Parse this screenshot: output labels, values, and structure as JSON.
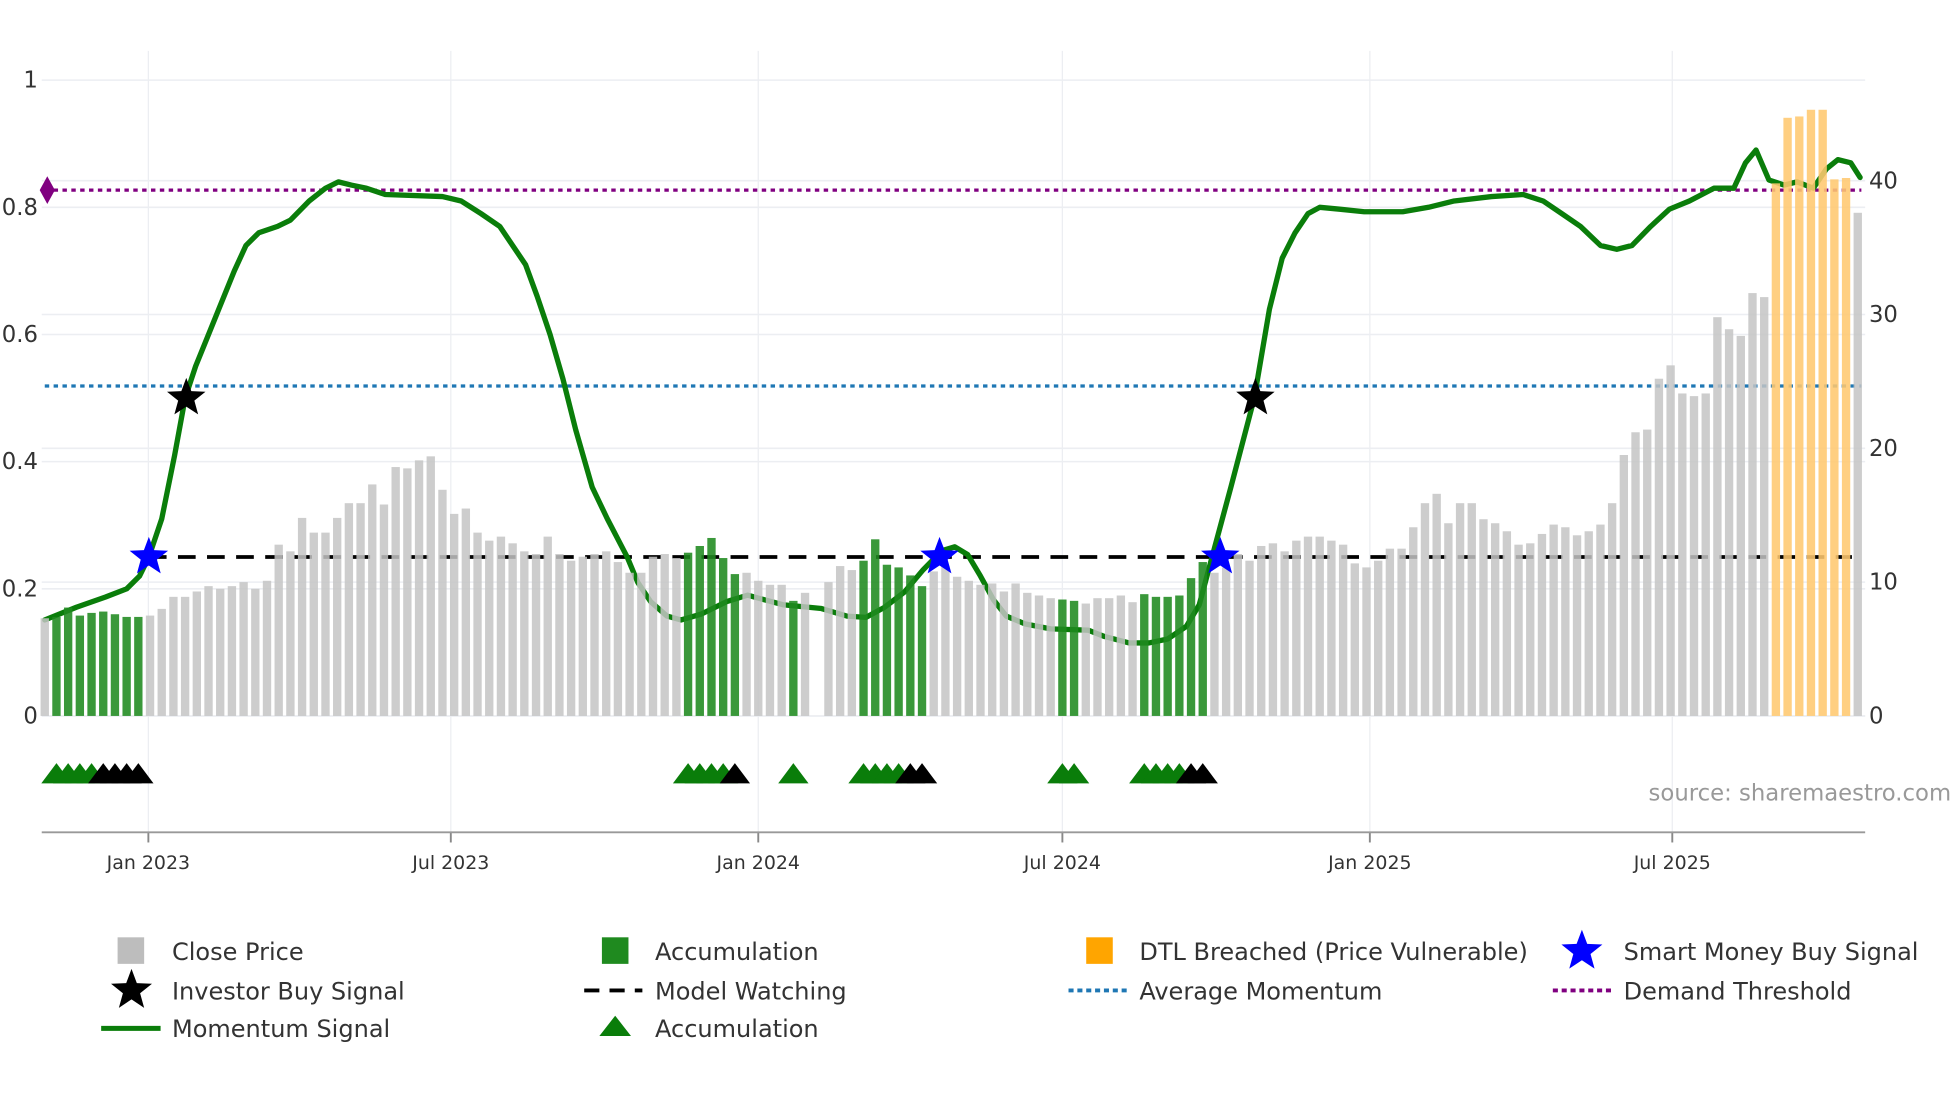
{
  "chart_data": {
    "type": "bar+line",
    "start_week": "2022-10-31",
    "frequency": "weekly",
    "price": {
      "name": "Close Price",
      "axis": "right",
      "values": [
        7.3,
        7.4,
        8.1,
        7.5,
        7.7,
        7.8,
        7.6,
        7.4,
        7.4,
        7.5,
        8.0,
        8.9,
        8.9,
        9.3,
        9.7,
        9.5,
        9.7,
        10.0,
        9.5,
        10.1,
        12.8,
        12.3,
        14.8,
        13.7,
        13.7,
        14.8,
        15.9,
        15.9,
        17.3,
        15.8,
        18.6,
        18.5,
        19.1,
        19.4,
        16.9,
        15.1,
        15.5,
        13.7,
        13.1,
        13.4,
        12.9,
        12.3,
        12.1,
        13.4,
        12.1,
        11.6,
        11.9,
        12.1,
        12.3,
        11.5,
        10.7,
        10.7,
        11.9,
        12.1,
        11.8,
        12.2,
        12.7,
        13.3,
        11.8,
        10.6,
        10.7,
        10.1,
        9.8,
        9.8,
        8.6,
        9.2,
        null,
        10.0,
        11.2,
        10.9,
        11.6,
        13.2,
        11.3,
        11.1,
        10.5,
        9.7,
        10.8,
        11.2,
        10.4,
        10.1,
        9.8,
        9.9,
        9.3,
        9.9,
        9.2,
        9.0,
        8.8,
        8.7,
        8.6,
        8.4,
        8.8,
        8.8,
        9.0,
        8.5,
        9.1,
        8.9,
        8.9,
        9.0,
        10.3,
        11.5,
        10.7,
        11.1,
        12.1,
        11.6,
        12.7,
        12.9,
        12.3,
        13.1,
        13.4,
        13.4,
        13.1,
        12.8,
        11.4,
        11.1,
        11.6,
        12.5,
        12.5,
        14.1,
        15.9,
        16.6,
        14.4,
        15.9,
        15.9,
        14.7,
        14.4,
        13.8,
        12.8,
        12.9,
        13.6,
        14.3,
        14.1,
        13.5,
        13.8,
        14.3,
        15.9,
        19.5,
        21.2,
        21.4,
        25.2,
        26.2,
        24.1,
        23.9,
        24.1,
        29.8,
        28.9,
        28.4,
        31.6,
        31.3,
        39.8,
        44.7,
        44.8,
        45.3,
        45.3,
        40.1,
        40.2,
        37.6
      ],
      "state": "ccccccccc"
    },
    "bar_state_runs": [
      [
        "close",
        1
      ],
      [
        "accumulation",
        8
      ],
      [
        "close",
        46
      ],
      [
        "accumulation",
        5
      ],
      [
        "close",
        4
      ],
      [
        "accumulation",
        1
      ],
      [
        "close",
        1
      ],
      [
        "none",
        1
      ],
      [
        "close",
        3
      ],
      [
        "accumulation",
        6
      ],
      [
        "close",
        11
      ],
      [
        "accumulation",
        2
      ],
      [
        "close",
        5
      ],
      [
        "accumulation",
        6
      ],
      [
        "close",
        48
      ],
      [
        "dtl_breached",
        7
      ],
      [
        "close",
        1
      ]
    ],
    "momentum": {
      "name": "Momentum Signal",
      "axis": "left",
      "points": [
        [
          0,
          0.151
        ],
        [
          2.7,
          0.171
        ],
        [
          5.2,
          0.187
        ],
        [
          7.0,
          0.2
        ],
        [
          8.1,
          0.22
        ],
        [
          8.9,
          0.25
        ],
        [
          10.0,
          0.31
        ],
        [
          11.1,
          0.41
        ],
        [
          12.0,
          0.5
        ],
        [
          12.9,
          0.55
        ],
        [
          14.0,
          0.6
        ],
        [
          15.1,
          0.65
        ],
        [
          16.2,
          0.7
        ],
        [
          17.2,
          0.74
        ],
        [
          18.3,
          0.76
        ],
        [
          19.9,
          0.77
        ],
        [
          21.0,
          0.78
        ],
        [
          22.6,
          0.81
        ],
        [
          24.0,
          0.83
        ],
        [
          25.1,
          0.84
        ],
        [
          26.2,
          0.835
        ],
        [
          27.5,
          0.83
        ],
        [
          29.1,
          0.82
        ],
        [
          34.0,
          0.817
        ],
        [
          35.6,
          0.81
        ],
        [
          37.3,
          0.79
        ],
        [
          38.9,
          0.77
        ],
        [
          40.0,
          0.74
        ],
        [
          41.1,
          0.71
        ],
        [
          42.1,
          0.66
        ],
        [
          43.2,
          0.6
        ],
        [
          44.3,
          0.53
        ],
        [
          45.4,
          0.45
        ],
        [
          46.8,
          0.36
        ],
        [
          48.1,
          0.31
        ],
        [
          49.8,
          0.25
        ],
        [
          50.7,
          0.21
        ],
        [
          51.8,
          0.18
        ],
        [
          53.2,
          0.157
        ],
        [
          54.4,
          0.151
        ],
        [
          56.1,
          0.16
        ],
        [
          58.3,
          0.18
        ],
        [
          60.1,
          0.19
        ],
        [
          61.5,
          0.183
        ],
        [
          63.1,
          0.175
        ],
        [
          66.4,
          0.169
        ],
        [
          68.6,
          0.157
        ],
        [
          70.2,
          0.155
        ],
        [
          71.8,
          0.171
        ],
        [
          73.5,
          0.195
        ],
        [
          75.1,
          0.23
        ],
        [
          76.7,
          0.26
        ],
        [
          77.8,
          0.266
        ],
        [
          78.9,
          0.254
        ],
        [
          80.0,
          0.22
        ],
        [
          81.1,
          0.183
        ],
        [
          82.2,
          0.157
        ],
        [
          83.8,
          0.145
        ],
        [
          86.0,
          0.137
        ],
        [
          89.2,
          0.135
        ],
        [
          90.6,
          0.125
        ],
        [
          92.7,
          0.115
        ],
        [
          94.4,
          0.115
        ],
        [
          96.0,
          0.121
        ],
        [
          97.6,
          0.141
        ],
        [
          98.7,
          0.175
        ],
        [
          99.8,
          0.25
        ],
        [
          101.4,
          0.36
        ],
        [
          103.4,
          0.5
        ],
        [
          104.7,
          0.64
        ],
        [
          105.8,
          0.72
        ],
        [
          106.9,
          0.76
        ],
        [
          108.0,
          0.79
        ],
        [
          109.0,
          0.8
        ],
        [
          110.7,
          0.797
        ],
        [
          112.8,
          0.793
        ],
        [
          116.1,
          0.793
        ],
        [
          118.3,
          0.8
        ],
        [
          120.5,
          0.81
        ],
        [
          123.7,
          0.817
        ],
        [
          126.4,
          0.82
        ],
        [
          128.1,
          0.81
        ],
        [
          129.7,
          0.79
        ],
        [
          131.3,
          0.77
        ],
        [
          133.0,
          0.74
        ],
        [
          134.4,
          0.734
        ],
        [
          135.7,
          0.74
        ],
        [
          137.3,
          0.77
        ],
        [
          138.9,
          0.797
        ],
        [
          140.6,
          0.81
        ],
        [
          142.7,
          0.83
        ],
        [
          144.4,
          0.83
        ],
        [
          145.4,
          0.87
        ],
        [
          146.3,
          0.89
        ],
        [
          147.4,
          0.843
        ],
        [
          148.7,
          0.835
        ],
        [
          149.8,
          0.84
        ],
        [
          151.2,
          0.83
        ],
        [
          152.3,
          0.86
        ],
        [
          153.3,
          0.875
        ],
        [
          154.4,
          0.87
        ],
        [
          155.2,
          0.847
        ]
      ]
    },
    "hlines": {
      "demand_threshold": 0.827,
      "average_momentum": 0.519,
      "model_watching": {
        "value": 0.25,
        "from_week": 8.9,
        "to_week": 154.5
      }
    },
    "investor_buy_signals": [
      [
        12.1,
        0.5
      ],
      [
        103.5,
        0.5
      ]
    ],
    "smart_money_buy_signals": [
      [
        8.9,
        0.25
      ],
      [
        76.5,
        0.25
      ],
      [
        100.5,
        0.25
      ]
    ],
    "accumulation_markers": {
      "value": -0.09,
      "green": [
        1,
        2,
        3,
        4,
        55,
        56,
        57,
        58,
        64,
        70,
        71,
        72,
        73,
        87,
        88,
        94,
        95,
        96,
        97
      ],
      "black": [
        5,
        6,
        7,
        8,
        59,
        74,
        75,
        98,
        99
      ]
    },
    "y_left": {
      "range": [
        -0.183,
        1.046
      ],
      "ticks": [
        0,
        0.2,
        0.4,
        0.6,
        0.8,
        1
      ],
      "labels": [
        "0",
        "0.2",
        "0.4",
        "0.6",
        "0.8",
        "1"
      ]
    },
    "y_right": {
      "range": [
        -8.7,
        49.7
      ],
      "ticks": [
        0,
        10,
        20,
        30,
        40
      ],
      "labels": [
        "0",
        "10",
        "20",
        "30",
        "40"
      ]
    },
    "x_ticks": [
      {
        "date": "2023-01-01",
        "label": "Jan 2023"
      },
      {
        "date": "2023-07-01",
        "label": "Jul 2023"
      },
      {
        "date": "2024-01-01",
        "label": "Jan 2024"
      },
      {
        "date": "2024-07-01",
        "label": "Jul 2024"
      },
      {
        "date": "2025-01-01",
        "label": "Jan 2025"
      },
      {
        "date": "2025-07-01",
        "label": "Jul 2025"
      }
    ],
    "legend": {
      "close_price": "Close Price",
      "accumulation_bar": "Accumulation",
      "dtl_breached": "DTL Breached (Price Vulnerable)",
      "smart_money": "Smart Money Buy Signal",
      "investor_buy": "Investor Buy Signal",
      "model_watching": "Model Watching",
      "average_momentum": "Average Momentum",
      "demand_threshold": "Demand Threshold",
      "momentum_signal": "Momentum Signal",
      "accumulation_marker": "Accumulation"
    },
    "source": "source: sharemaestro.com",
    "legend_placement": "bottom",
    "grid": true
  },
  "colors": {
    "close": "#c4c4c4",
    "accumulation": "#1f8a1f",
    "dtl": "#ffc870",
    "dtl_legend": "#ffa500",
    "momentum": "#0a7d0a",
    "smart_money": "#0000ff",
    "investor": "#000000",
    "avg_momentum": "#1f77b4",
    "demand": "#800080",
    "marker_black": "#000000"
  }
}
